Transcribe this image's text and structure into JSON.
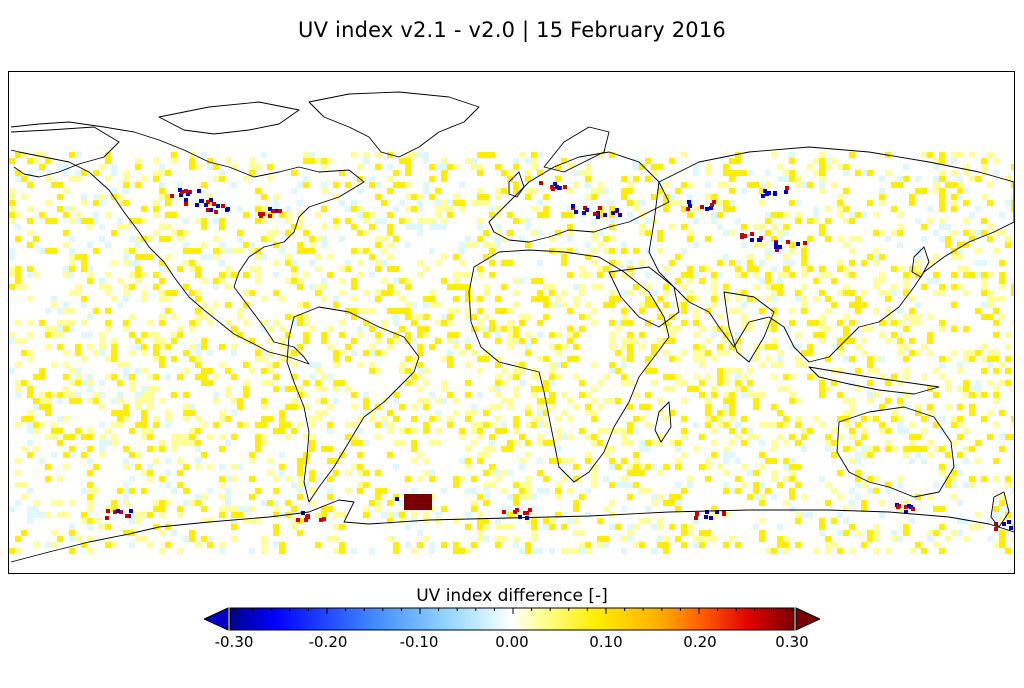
{
  "title": "UV index v2.1 - v2.0  |  15 February 2016",
  "colorbar": {
    "label": "UV index difference  [-]",
    "ticks": [
      "-0.30",
      "-0.20",
      "-0.10",
      "0.00",
      "0.10",
      "0.20",
      "0.30"
    ],
    "range": [
      -0.3,
      0.3
    ],
    "colormap": [
      "#00008c",
      "#0000ff",
      "#3f86ff",
      "#8fd3ff",
      "#dff7ff",
      "#ffffff",
      "#ffff99",
      "#ffee00",
      "#ffb000",
      "#ff5a00",
      "#e00000",
      "#7a0000"
    ],
    "extend": "both"
  },
  "colors": {
    "land_outline": "#000000",
    "ocean": "#ffffff",
    "frame": "#000000"
  }
}
